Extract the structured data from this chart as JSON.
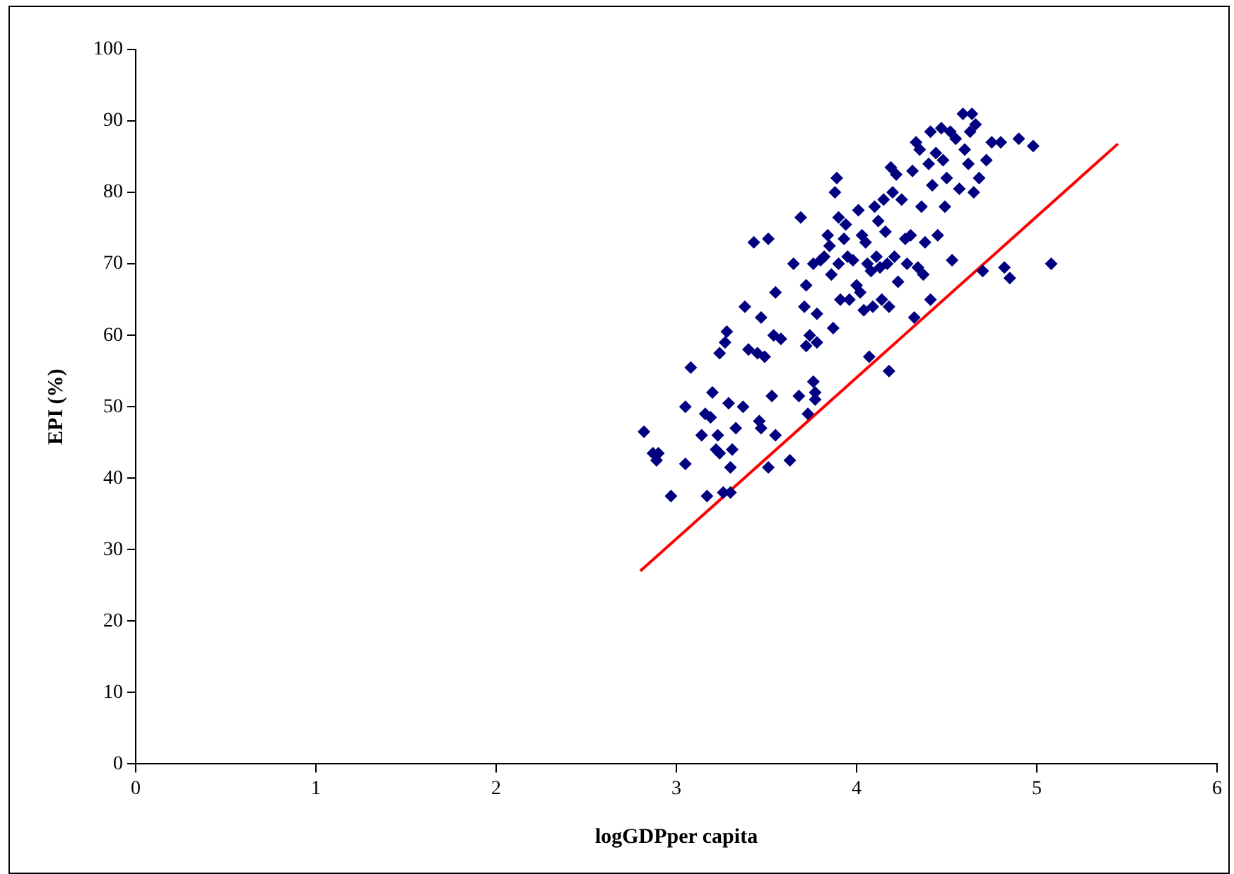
{
  "chart_data": {
    "type": "scatter",
    "xlabel": "logGDPper capita",
    "ylabel": "EPI (%)",
    "xlim": [
      0,
      6
    ],
    "xticks": [
      0,
      1,
      2,
      3,
      4,
      5,
      6
    ],
    "ylim": [
      0,
      100
    ],
    "yticks": [
      0,
      10,
      20,
      30,
      40,
      50,
      60,
      70,
      80,
      90,
      100
    ],
    "grid": false,
    "legend": false,
    "marker": "diamond",
    "series": [
      {
        "color": "#000080",
        "x": [
          2.82,
          2.87,
          2.89,
          2.9,
          2.97,
          3.05,
          3.05,
          3.08,
          3.14,
          3.16,
          3.17,
          3.19,
          3.2,
          3.22,
          3.23,
          3.24,
          3.24,
          3.26,
          3.27,
          3.28,
          3.29,
          3.3,
          3.3,
          3.31,
          3.33,
          3.37,
          3.38,
          3.4,
          3.43,
          3.45,
          3.46,
          3.47,
          3.47,
          3.49,
          3.51,
          3.51,
          3.53,
          3.54,
          3.55,
          3.55,
          3.58,
          3.63,
          3.65,
          3.68,
          3.69,
          3.71,
          3.72,
          3.72,
          3.73,
          3.74,
          3.76,
          3.76,
          3.77,
          3.77,
          3.78,
          3.78,
          3.8,
          3.82,
          3.84,
          3.85,
          3.86,
          3.87,
          3.88,
          3.89,
          3.9,
          3.9,
          3.91,
          3.93,
          3.94,
          3.95,
          3.96,
          3.98,
          4.0,
          4.01,
          4.02,
          4.03,
          4.04,
          4.05,
          4.06,
          4.07,
          4.08,
          4.09,
          4.1,
          4.11,
          4.12,
          4.13,
          4.14,
          4.15,
          4.16,
          4.17,
          4.18,
          4.18,
          4.19,
          4.2,
          4.21,
          4.22,
          4.23,
          4.25,
          4.27,
          4.28,
          4.3,
          4.31,
          4.32,
          4.33,
          4.34,
          4.35,
          4.36,
          4.37,
          4.38,
          4.4,
          4.41,
          4.41,
          4.42,
          4.44,
          4.45,
          4.47,
          4.48,
          4.49,
          4.5,
          4.52,
          4.53,
          4.55,
          4.57,
          4.59,
          4.6,
          4.62,
          4.63,
          4.64,
          4.65,
          4.66,
          4.68,
          4.7,
          4.72,
          4.75,
          4.8,
          4.82,
          4.85,
          4.9,
          4.98,
          5.08
        ],
        "values": [
          46.5,
          43.5,
          42.5,
          43.5,
          37.5,
          50,
          42,
          55.5,
          46,
          49,
          37.5,
          48.5,
          52,
          44,
          46,
          43.5,
          57.5,
          38,
          59,
          60.5,
          50.5,
          41.5,
          38,
          44,
          47,
          50,
          64,
          58,
          73,
          57.5,
          48,
          62.5,
          47,
          57,
          73.5,
          41.5,
          51.5,
          60,
          66,
          46,
          59.5,
          42.5,
          70,
          51.5,
          76.5,
          64,
          58.5,
          67,
          49,
          60,
          70,
          53.5,
          52,
          51,
          63,
          59,
          70.5,
          71,
          74,
          72.5,
          68.5,
          61,
          80,
          82,
          76.5,
          70,
          65,
          73.5,
          75.5,
          71,
          65,
          70.5,
          67,
          77.5,
          66,
          74,
          63.5,
          73,
          70,
          57,
          69,
          64,
          78,
          71,
          76,
          69.5,
          65,
          79,
          74.5,
          70,
          64,
          55,
          83.5,
          80,
          71,
          82.5,
          67.5,
          79,
          73.5,
          70,
          74,
          83,
          62.5,
          87,
          69.5,
          86,
          78,
          68.5,
          73,
          84,
          88.5,
          65,
          81,
          85.5,
          74,
          89,
          84.5,
          78,
          82,
          88.5,
          70.5,
          87.5,
          80.5,
          91,
          86,
          84,
          88.5,
          91,
          80,
          89.5,
          82,
          69,
          84.5,
          87,
          87,
          69.5,
          68,
          87.5,
          86.5,
          70
        ]
      },
      {
        "type": "line",
        "color": "#ff0000",
        "marker": "none",
        "x": [
          2.8,
          5.45
        ],
        "values": [
          27,
          86.8
        ]
      }
    ]
  }
}
